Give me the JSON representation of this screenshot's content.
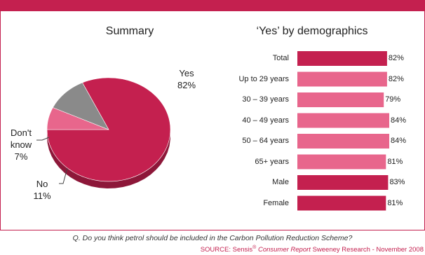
{
  "pie_title": "Summary",
  "bar_title": "‘Yes’ by demographics",
  "question": "Q.  Do you think petrol should be included in the Carbon Pollution Reduction Scheme?",
  "source": {
    "prefix": "SOURCE: Sensis",
    "reg": "®",
    "report": "Consumer Report",
    "suffix": "Sweeney Research - November 2008"
  },
  "colors": {
    "accent": "#c4204f",
    "light": "#e8668c",
    "grey": "#8a8a8a"
  },
  "chart_data": [
    {
      "type": "pie",
      "title": "Summary",
      "slices": [
        {
          "label": "Yes",
          "value": 82,
          "display": "82%",
          "color": "#c4204f"
        },
        {
          "label": "No",
          "value": 11,
          "display": "11%",
          "color": "#8a8a8a"
        },
        {
          "label": "Don't know",
          "value": 7,
          "display": "7%",
          "color": "#e8668c"
        }
      ]
    },
    {
      "type": "bar",
      "orientation": "horizontal",
      "title": "‘Yes’ by demographics",
      "categories": [
        "Total",
        "Up to 29 years",
        "30 – 39 years",
        "40 – 49 years",
        "50 – 64 years",
        "65+ years",
        "Male",
        "Female"
      ],
      "values": [
        82,
        82,
        79,
        84,
        84,
        81,
        83,
        81
      ],
      "value_labels": [
        "82%",
        "82%",
        "79%",
        "84%",
        "84%",
        "81%",
        "83%",
        "81%"
      ],
      "colors": [
        "#c4204f",
        "#e8668c",
        "#e8668c",
        "#e8668c",
        "#e8668c",
        "#e8668c",
        "#c4204f",
        "#c4204f"
      ],
      "xlim": [
        0,
        100
      ]
    }
  ]
}
